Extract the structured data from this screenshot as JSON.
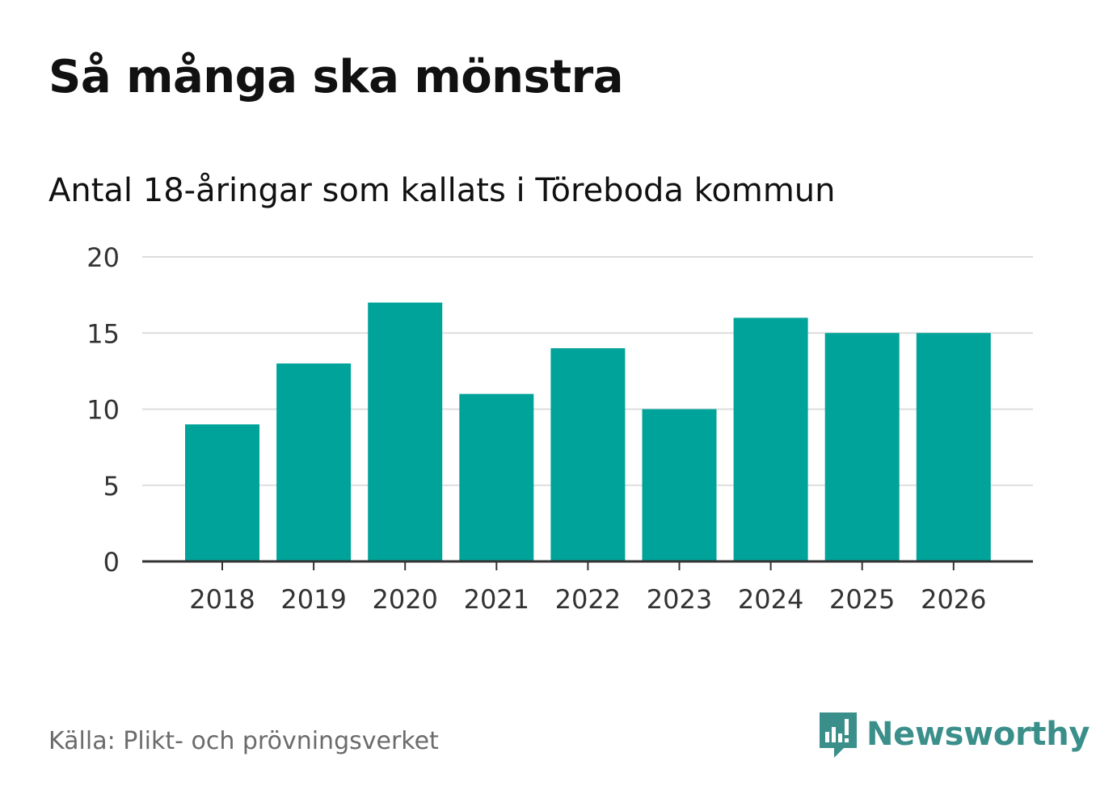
{
  "header": {
    "title": "Så många ska mönstra",
    "subtitle": "Antal 18-åringar som kallats i Töreboda kommun"
  },
  "footer": {
    "source": "Källa: Plikt- och prövningsverket",
    "brand": "Newsworthy",
    "brand_logo_icon": "newsworthy-chart-bubble-icon"
  },
  "colors": {
    "bar": "#00a39a",
    "gridline": "#dddddd",
    "axis": "#333333",
    "tick_text": "#333333",
    "brand": "#3b8f8a",
    "source_text": "#6b6b6b"
  },
  "chart_data": {
    "type": "bar",
    "title": "Så många ska mönstra",
    "subtitle": "Antal 18-åringar som kallats i Töreboda kommun",
    "categories": [
      "2018",
      "2019",
      "2020",
      "2021",
      "2022",
      "2023",
      "2024",
      "2025",
      "2026"
    ],
    "values": [
      9,
      13,
      17,
      11,
      14,
      10,
      16,
      15,
      15
    ],
    "xlabel": "",
    "ylabel": "",
    "ylim": [
      0,
      20
    ],
    "yticks": [
      0,
      5,
      10,
      15,
      20
    ],
    "grid": true,
    "legend": "none"
  }
}
